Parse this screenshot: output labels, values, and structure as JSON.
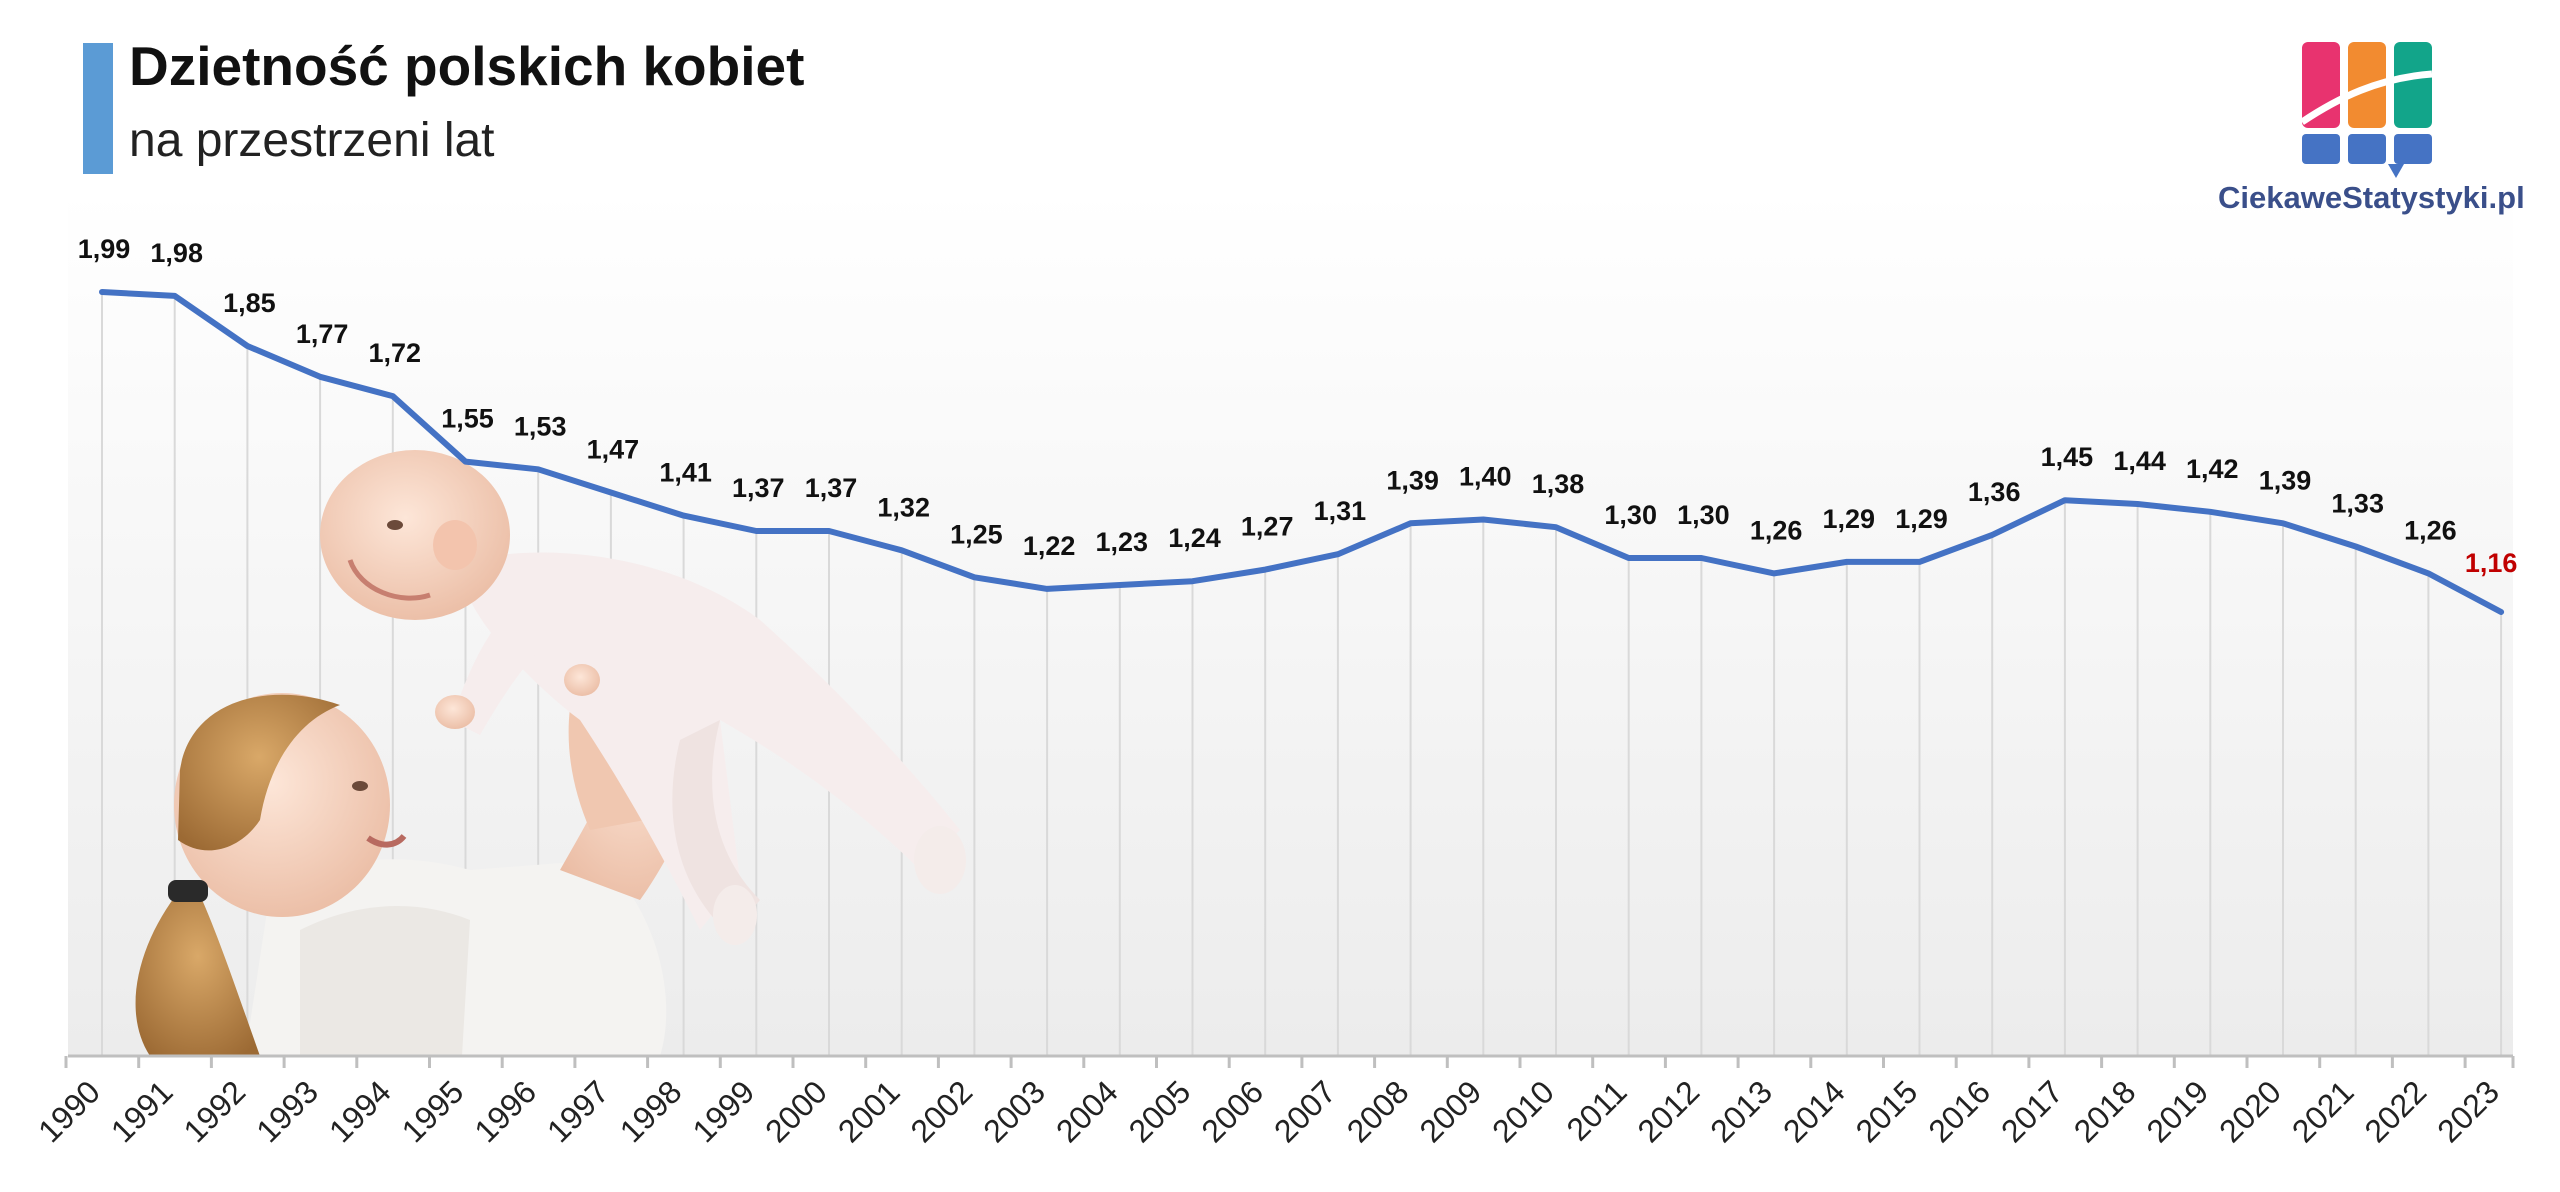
{
  "header": {
    "title": "Dzietność polskich kobiet",
    "subtitle": "na przestrzeni lat"
  },
  "brand": {
    "logo_text": "CiekaweStatystyki.pl",
    "logo_icon": "bar-chart-logo-icon",
    "colors": [
      "#e8336f",
      "#f28b30",
      "#12a58a",
      "#4573c4"
    ]
  },
  "photo": {
    "icon": "mother-lifting-baby-photo"
  },
  "colors": {
    "line": "#4472c4",
    "label": "#111111",
    "highlight_label": "#c00000",
    "grid": "#d9d9d9",
    "axis": "#bfbfbf"
  },
  "chart_data": {
    "type": "line",
    "title": "Dzietność polskich kobiet",
    "subtitle": "na przestrzeni lat",
    "xlabel": "",
    "ylabel": "",
    "grid": "vertical",
    "legend": "none",
    "categories": [
      "1990",
      "1991",
      "1992",
      "1993",
      "1994",
      "1995",
      "1996",
      "1997",
      "1998",
      "1999",
      "2000",
      "2001",
      "2002",
      "2003",
      "2004",
      "2005",
      "2006",
      "2007",
      "2008",
      "2009",
      "2010",
      "2011",
      "2012",
      "2013",
      "2014",
      "2015",
      "2016",
      "2017",
      "2018",
      "2019",
      "2020",
      "2021",
      "2022",
      "2023"
    ],
    "values": [
      1.99,
      1.98,
      1.85,
      1.77,
      1.72,
      1.55,
      1.53,
      1.47,
      1.41,
      1.37,
      1.37,
      1.32,
      1.25,
      1.22,
      1.23,
      1.24,
      1.27,
      1.31,
      1.39,
      1.4,
      1.38,
      1.3,
      1.3,
      1.26,
      1.29,
      1.29,
      1.36,
      1.45,
      1.44,
      1.42,
      1.39,
      1.33,
      1.26,
      1.16
    ],
    "labels": [
      "1,99",
      "1,98",
      "1,85",
      "1,77",
      "1,72",
      "1,55",
      "1,53",
      "1,47",
      "1,41",
      "1,37",
      "1,37",
      "1,32",
      "1,25",
      "1,22",
      "1,23",
      "1,24",
      "1,27",
      "1,31",
      "1,39",
      "1,40",
      "1,38",
      "1,30",
      "1,30",
      "1,26",
      "1,29",
      "1,29",
      "1,36",
      "1,45",
      "1,44",
      "1,42",
      "1,39",
      "1,33",
      "1,26",
      "1,16"
    ],
    "highlight_index": 33
  }
}
